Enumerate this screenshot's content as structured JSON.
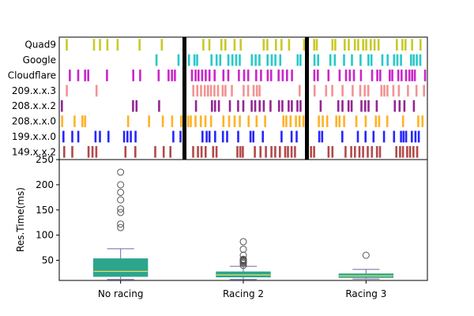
{
  "chart_data": [
    {
      "type": "event-raster",
      "rows": [
        "Quad9",
        "Google",
        "Cloudflare",
        "209.x.x.3",
        "208.x.x.2",
        "208.x.x.0",
        "199.x.x.0",
        "149.x.x.2"
      ],
      "row_colors": [
        "#bfbf00",
        "#00bfbf",
        "#bf00bf",
        "#f08080",
        "#800080",
        "#ffa500",
        "#0000ff",
        "#a52a2a"
      ],
      "segments": [
        "No racing",
        "Racing 2",
        "Racing 3"
      ],
      "separator_color": "#000000",
      "row_density": [
        0.45,
        0.55,
        0.6,
        0.55,
        0.6,
        0.7,
        0.55,
        0.6
      ],
      "seed": 7
    },
    {
      "type": "boxplot",
      "categories": [
        "No racing",
        "Racing 2",
        "Racing 3"
      ],
      "ylabel": "Res.Time(ms)",
      "ylim": [
        10,
        250
      ],
      "yticks": [
        50,
        100,
        150,
        200,
        250
      ],
      "box_color": "#2ca58d",
      "whisker_color": "#6a6aaa",
      "median_color": "#e8e060",
      "boxes": [
        {
          "whislo": 12,
          "q1": 18,
          "med": 28,
          "q3": 53,
          "whishi": 73,
          "fliers": [
            115,
            122,
            145,
            152,
            170,
            185,
            200,
            225
          ]
        },
        {
          "whislo": 12,
          "q1": 17,
          "med": 21,
          "q3": 27,
          "whishi": 38,
          "fliers": [
            40,
            44,
            46,
            48,
            49,
            50,
            51,
            52,
            60,
            72,
            87
          ]
        },
        {
          "whislo": 13,
          "q1": 16,
          "med": 19,
          "q3": 23,
          "whishi": 32,
          "fliers": [
            60
          ]
        }
      ]
    }
  ]
}
